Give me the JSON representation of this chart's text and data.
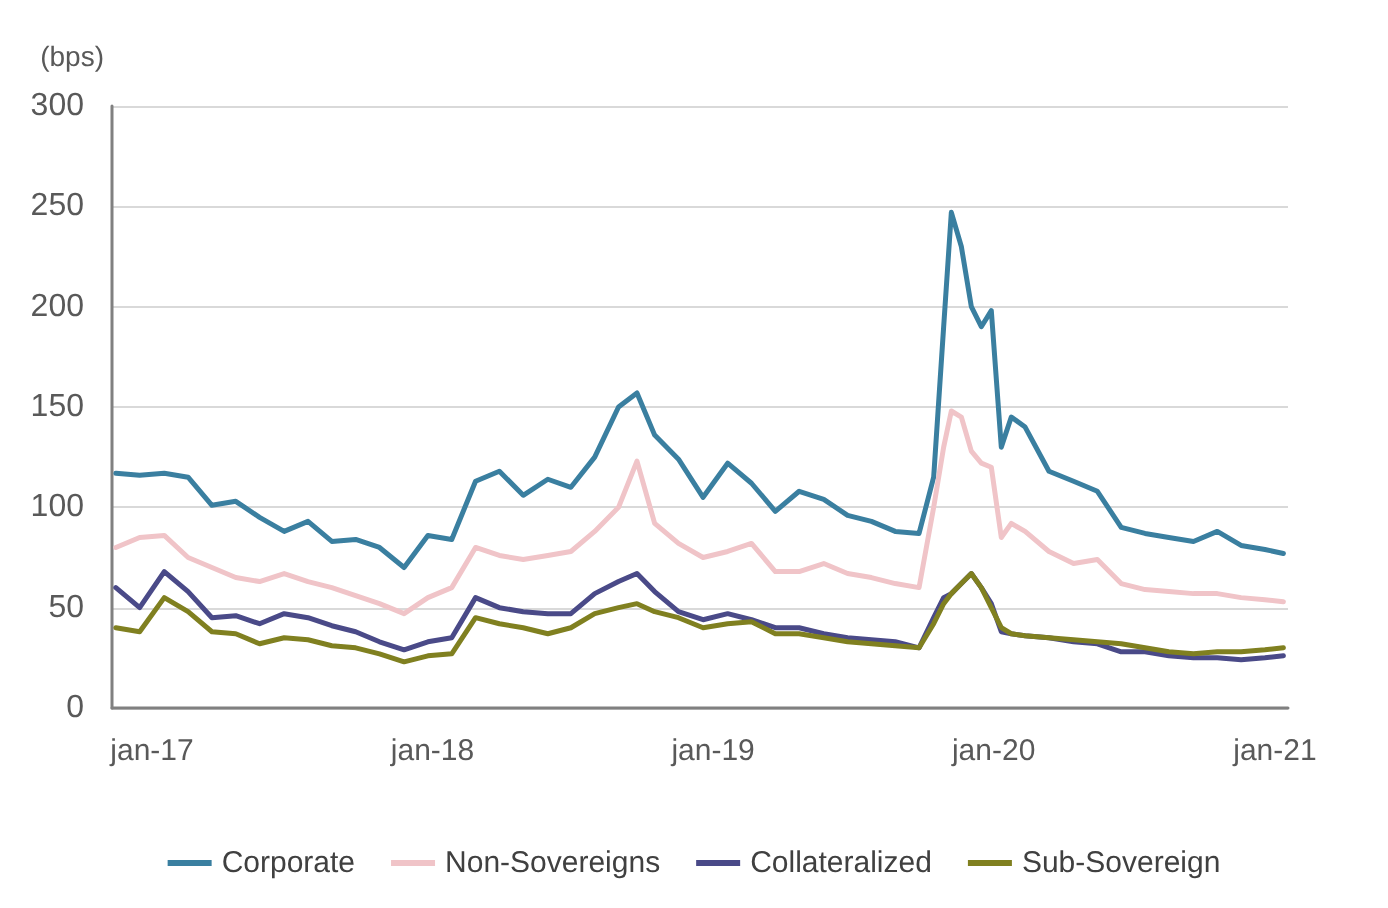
{
  "chart_data": {
    "type": "line",
    "ylabel": "(bps)",
    "x": [
      "2016-11-15",
      "2016-12-16",
      "2017-01-17",
      "2017-02-17",
      "2017-03-20",
      "2017-04-20",
      "2017-05-21",
      "2017-06-22",
      "2017-07-23",
      "2017-08-23",
      "2017-09-23",
      "2017-10-24",
      "2017-11-25",
      "2017-12-26",
      "2018-01-26",
      "2018-02-26",
      "2018-03-29",
      "2018-04-29",
      "2018-05-31",
      "2018-06-30",
      "2018-07-31",
      "2018-08-31",
      "2018-09-24",
      "2018-10-17",
      "2018-11-17",
      "2018-12-19",
      "2019-01-20",
      "2019-02-20",
      "2019-03-23",
      "2019-04-23",
      "2019-05-25",
      "2019-06-25",
      "2019-07-26",
      "2019-08-26",
      "2019-09-26",
      "2019-10-15",
      "2019-10-28",
      "2019-11-07",
      "2019-11-20",
      "2019-12-03",
      "2019-12-16",
      "2019-12-29",
      "2020-01-11",
      "2020-01-24",
      "2020-02-11",
      "2020-03-13",
      "2020-04-14",
      "2020-05-15",
      "2020-06-15",
      "2020-07-16",
      "2020-08-16",
      "2020-09-17",
      "2020-10-18",
      "2020-11-18",
      "2020-12-19",
      "2021-01-12"
    ],
    "series": [
      {
        "name": "Corporate",
        "color": "#3a7fa0",
        "values": [
          117,
          116,
          117,
          115,
          101,
          103,
          95,
          88,
          93,
          83,
          84,
          80,
          70,
          86,
          84,
          113,
          118,
          106,
          114,
          110,
          125,
          150,
          157,
          136,
          124,
          105,
          122,
          112,
          98,
          108,
          104,
          96,
          93,
          88,
          87,
          115,
          190,
          247,
          230,
          200,
          190,
          198,
          130,
          145,
          140,
          118,
          113,
          108,
          90,
          87,
          85,
          83,
          88,
          81,
          79,
          77
        ]
      },
      {
        "name": "Non-Sovereigns",
        "color": "#f0c4c8",
        "values": [
          80,
          85,
          86,
          75,
          70,
          65,
          63,
          67,
          63,
          60,
          56,
          52,
          47,
          55,
          60,
          80,
          76,
          74,
          76,
          78,
          88,
          100,
          123,
          92,
          82,
          75,
          78,
          82,
          68,
          68,
          72,
          67,
          65,
          62,
          60,
          100,
          130,
          148,
          145,
          128,
          122,
          120,
          85,
          92,
          88,
          78,
          72,
          74,
          62,
          59,
          58,
          57,
          57,
          55,
          54,
          53
        ]
      },
      {
        "name": "Collateralized",
        "color": "#4a4a88",
        "values": [
          60,
          50,
          68,
          58,
          45,
          46,
          42,
          47,
          45,
          41,
          38,
          33,
          29,
          33,
          35,
          55,
          50,
          48,
          47,
          47,
          57,
          63,
          67,
          58,
          48,
          44,
          47,
          44,
          40,
          40,
          37,
          35,
          34,
          33,
          30,
          45,
          55,
          57,
          62,
          67,
          60,
          52,
          38,
          37,
          36,
          35,
          33,
          32,
          28,
          28,
          26,
          25,
          25,
          24,
          25,
          26
        ]
      },
      {
        "name": "Sub-Sovereign",
        "color": "#808020",
        "values": [
          40,
          38,
          55,
          48,
          38,
          37,
          32,
          35,
          34,
          31,
          30,
          27,
          23,
          26,
          27,
          45,
          42,
          40,
          37,
          40,
          47,
          50,
          52,
          48,
          45,
          40,
          42,
          43,
          37,
          37,
          35,
          33,
          32,
          31,
          30,
          42,
          52,
          57,
          62,
          67,
          60,
          50,
          40,
          37,
          36,
          35,
          34,
          33,
          32,
          30,
          28,
          27,
          28,
          28,
          29,
          30
        ]
      }
    ],
    "xlim": [
      "2016-11-10",
      "2021-01-18"
    ],
    "xticks": [
      {
        "value": "2017-01-01",
        "label": "jan-17"
      },
      {
        "value": "2018-01-01",
        "label": "jan-18"
      },
      {
        "value": "2019-01-01",
        "label": "jan-19"
      },
      {
        "value": "2020-01-01",
        "label": "jan-20"
      },
      {
        "value": "2021-01-01",
        "label": "jan-21"
      }
    ],
    "ylim": [
      0,
      300
    ],
    "yticks": [
      0,
      50,
      100,
      150,
      200,
      250,
      300
    ],
    "grid": "y",
    "legend": "bottom",
    "marker": "none",
    "line_style": "solid"
  }
}
